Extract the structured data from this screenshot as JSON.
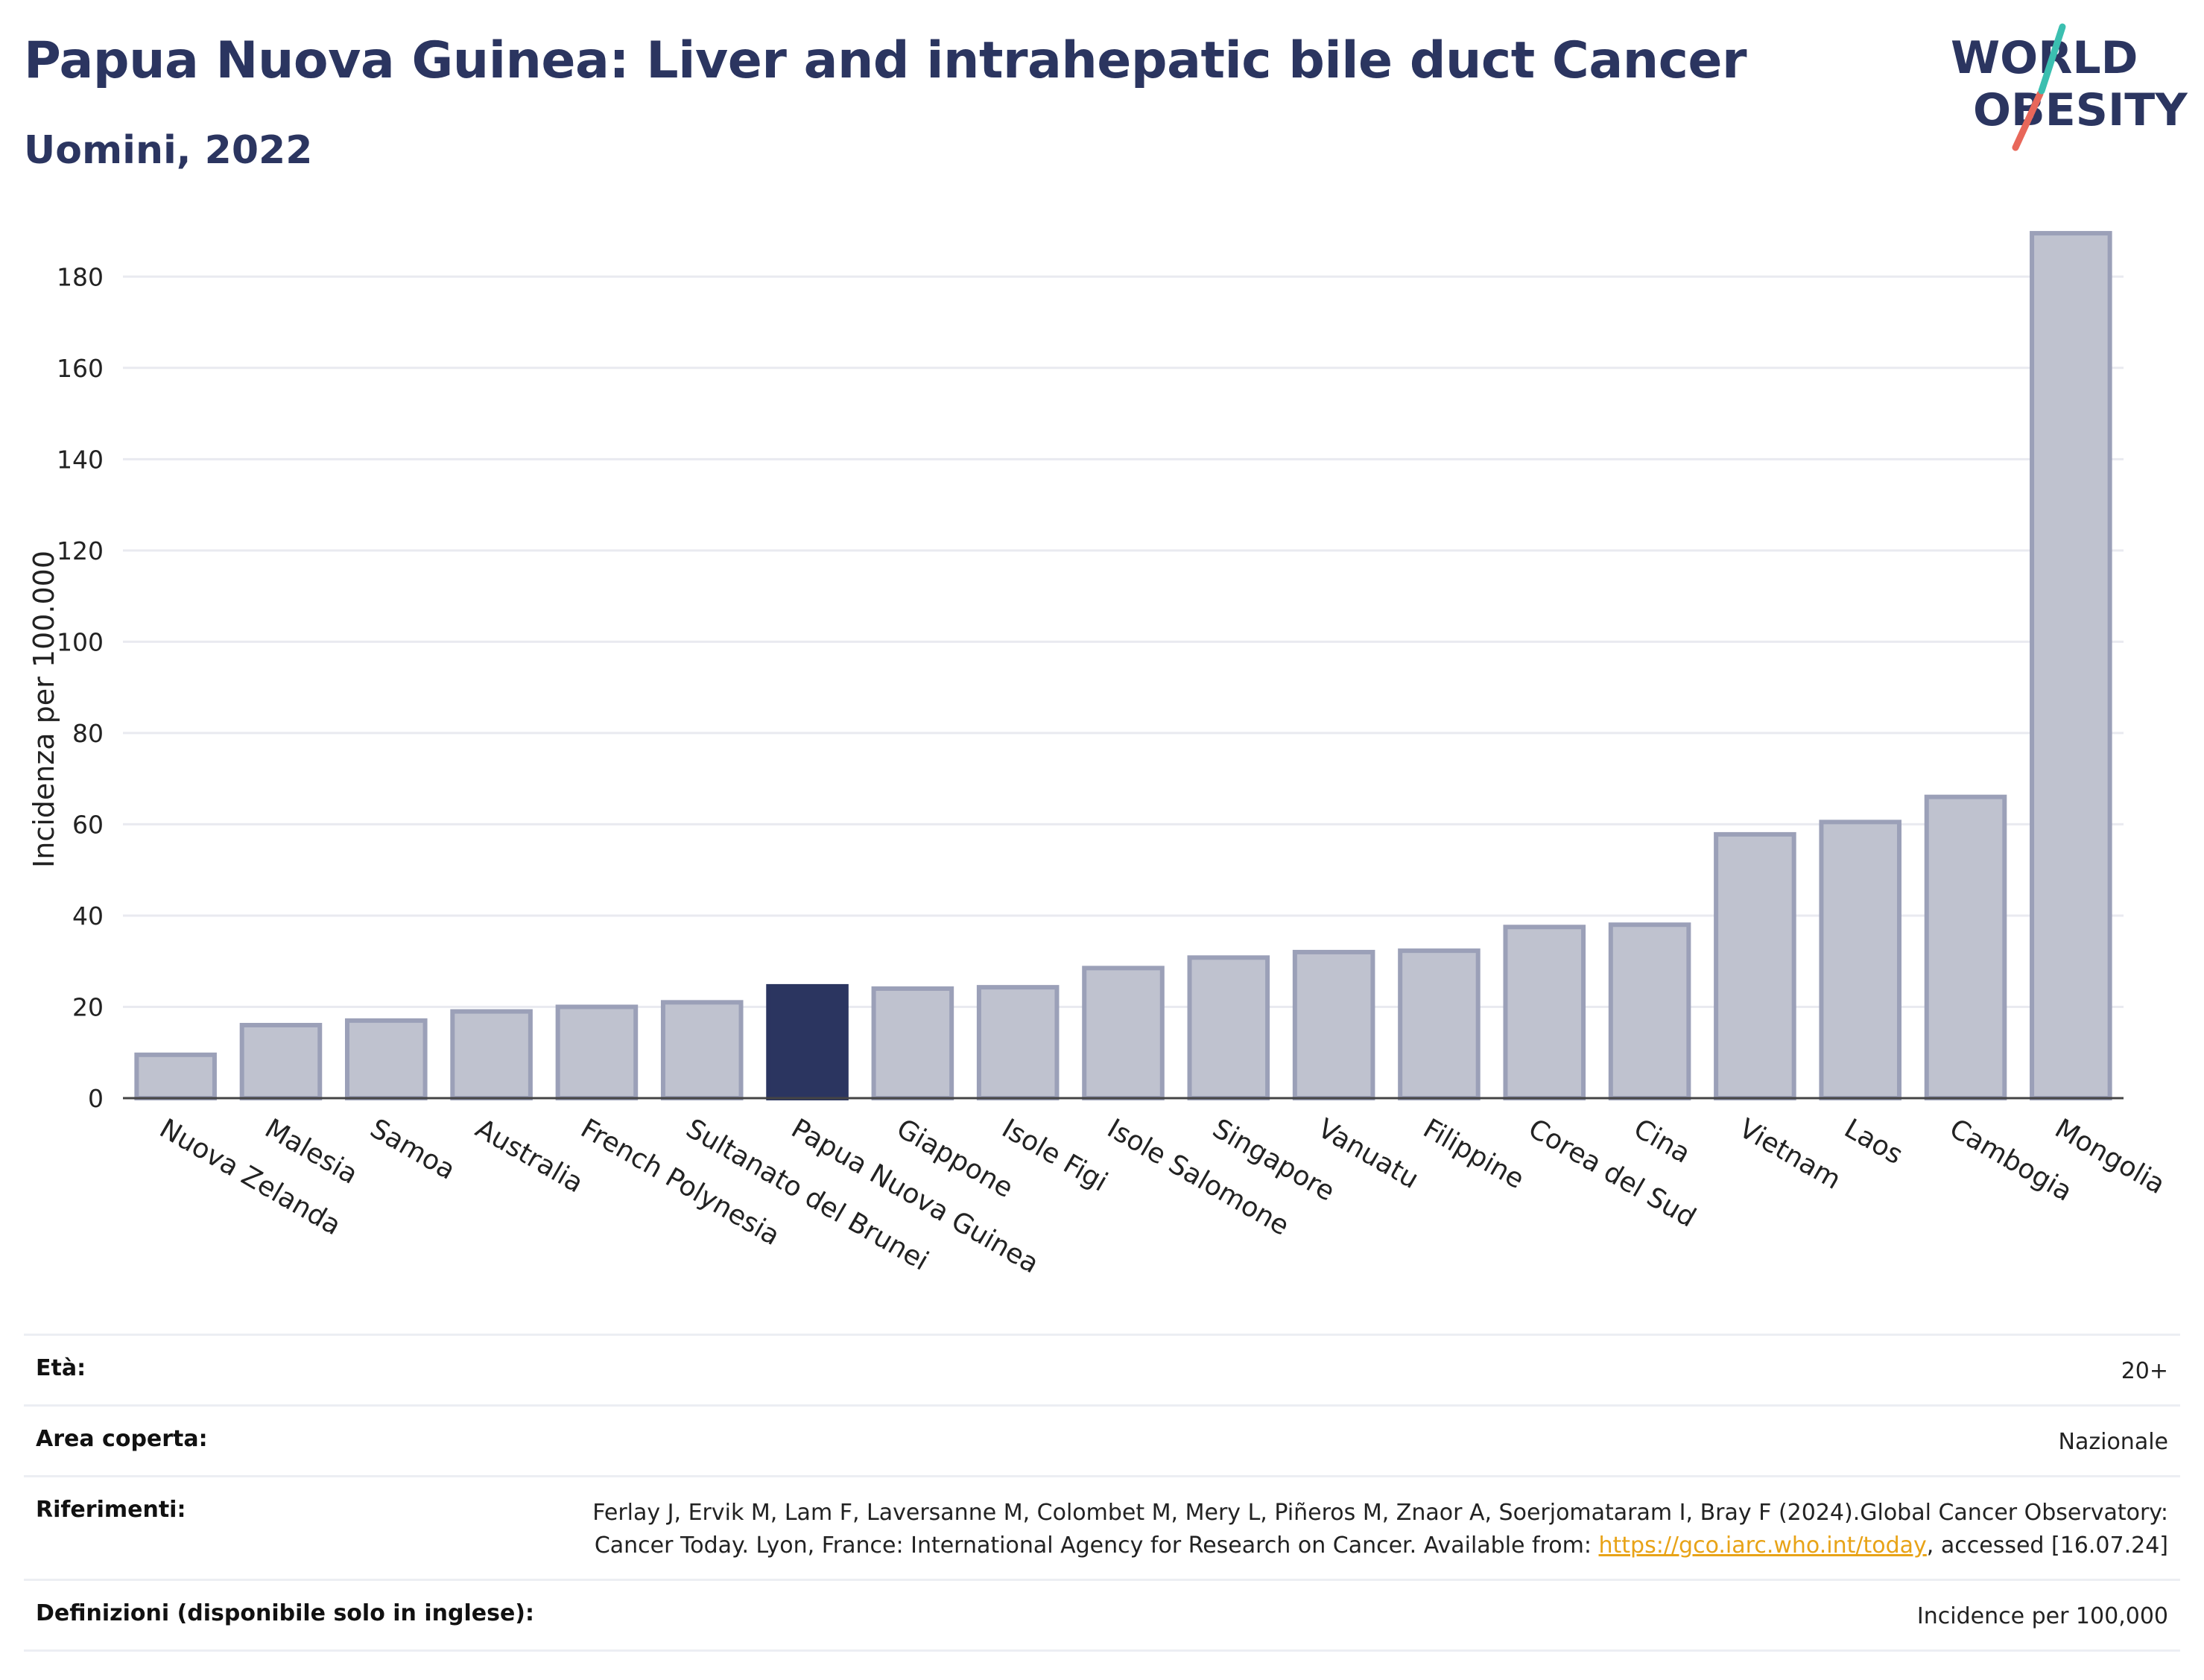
{
  "title": "Papua Nuova Guinea: Liver and intrahepatic bile duct Cancer",
  "subtitle": "Uomini, 2022",
  "logo": {
    "line1": "WORLD",
    "line2": "OBESITY"
  },
  "colors": {
    "highlight": "#2b3560",
    "bar": "#bfc2cf",
    "bar_edge": "#9ba0b8",
    "grid": "#e9eaf0",
    "link": "#e8a317"
  },
  "chart_data": {
    "type": "bar",
    "title": "Papua Nuova Guinea: Liver and intrahepatic bile duct Cancer",
    "subtitle": "Uomini, 2022",
    "xlabel": "",
    "ylabel": "Incidenza per 100.000",
    "ylim": [
      0,
      190
    ],
    "yticks": [
      0,
      20,
      40,
      60,
      80,
      100,
      120,
      140,
      160,
      180
    ],
    "grid": true,
    "highlight": "Papua Nuova Guinea",
    "categories": [
      "Nuova Zelanda",
      "Malesia",
      "Samoa",
      "Australia",
      "French Polynesia",
      "Sultanato del Brunei",
      "Papua Nuova Guinea",
      "Giappone",
      "Isole Figi",
      "Isole Salomone",
      "Singapore",
      "Vanuatu",
      "Filippine",
      "Corea del Sud",
      "Cina",
      "Vietnam",
      "Laos",
      "Cambogia",
      "Mongolia"
    ],
    "values": [
      9.5,
      16,
      17,
      19,
      20,
      21,
      24.5,
      24,
      24.3,
      28.5,
      30.8,
      32,
      32.3,
      37.5,
      38,
      57.8,
      60.5,
      66,
      189.5
    ]
  },
  "meta": [
    {
      "key": "Età:",
      "value": "20+"
    },
    {
      "key": "Area coperta:",
      "value": "Nazionale"
    },
    {
      "key": "Riferimenti:",
      "value_before": "Ferlay J, Ervik M, Lam F, Laversanne M, Colombet M, Mery L, Piñeros M, Znaor A, Soerjomataram I, Bray F (2024).Global Cancer Observatory: Cancer Today. Lyon, France: International Agency for Research on Cancer. Available from: ",
      "link": "https://gco.iarc.who.int/today",
      "value_after": ", accessed [16.07.24]"
    },
    {
      "key": "Definizioni (disponibile solo in inglese):",
      "value": "Incidence per 100,000"
    }
  ]
}
